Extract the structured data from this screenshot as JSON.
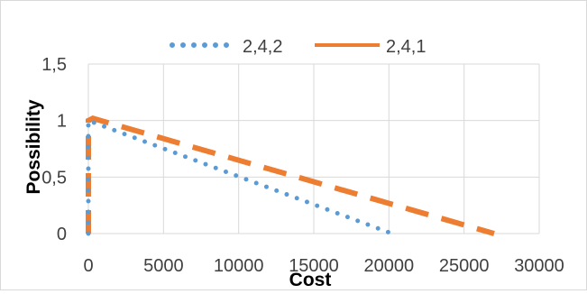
{
  "chart_data": {
    "type": "line",
    "title": "",
    "xlabel": "Cost",
    "ylabel": "Possibility",
    "xlim": [
      0,
      30000
    ],
    "ylim": [
      0,
      1.5
    ],
    "x_ticks": [
      "0",
      "5000",
      "10000",
      "15000",
      "20000",
      "25000",
      "30000"
    ],
    "y_ticks": [
      "0",
      "0,5",
      "1",
      "1,5"
    ],
    "grid": true,
    "legend_position": "top",
    "series": [
      {
        "name": "2,4,2",
        "color": "#5B9BD5",
        "style": "dotted",
        "points": [
          [
            0,
            0
          ],
          [
            0,
            1
          ],
          [
            20200,
            0
          ]
        ]
      },
      {
        "name": "2,4,1",
        "color": "#ED7D31",
        "style": "dashed",
        "points": [
          [
            0,
            0
          ],
          [
            0,
            1
          ],
          [
            300,
            1.02
          ],
          [
            27000,
            0
          ]
        ]
      }
    ]
  }
}
